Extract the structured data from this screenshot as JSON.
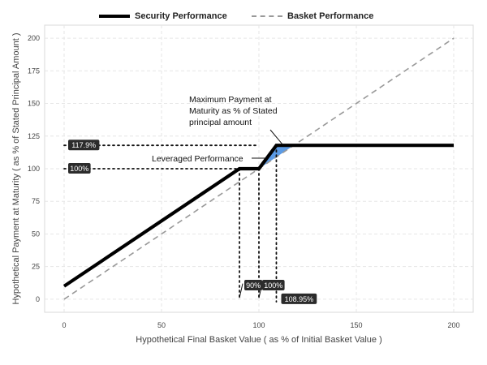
{
  "legend": {
    "security": "Security Performance",
    "basket": "Basket Performance"
  },
  "colors": {
    "security": "#000000",
    "basket": "#999999",
    "fill": "#4a90e2",
    "label_bg": "#2b2b2b",
    "grid": "#e6e6e6"
  },
  "chart_data": {
    "type": "line",
    "xlabel": "Hypothetical Final Basket Value ( as % of Initial Basket Value )",
    "ylabel": "Hypothetical Payment at Maturity ( as % of Stated Principal Amount )",
    "xlim": [
      -10,
      210
    ],
    "ylim": [
      -10,
      210
    ],
    "xticks": [
      0,
      50,
      100,
      150,
      200
    ],
    "yticks": [
      0,
      25,
      50,
      75,
      100,
      125,
      150,
      175,
      200
    ],
    "grid": true,
    "legend_position": "top-center",
    "series": [
      {
        "name": "Security Performance",
        "style": "solid",
        "x": [
          0,
          90,
          100,
          108.95,
          200
        ],
        "y": [
          10,
          100,
          100,
          117.9,
          117.9
        ]
      },
      {
        "name": "Basket Performance",
        "style": "dashed",
        "x": [
          0,
          200
        ],
        "y": [
          0,
          200
        ]
      }
    ],
    "shaded_region": {
      "x": [
        100,
        108.95,
        117.9
      ],
      "y": [
        100,
        117.9,
        117.9
      ]
    },
    "reference_lines": {
      "horizontal": [
        {
          "y": 117.9,
          "label": "117.9%"
        },
        {
          "y": 100,
          "label": "100%"
        }
      ],
      "vertical": [
        {
          "x": 90,
          "label": "90%"
        },
        {
          "x": 100,
          "label": "100%"
        },
        {
          "x": 108.95,
          "label": "108.95%"
        }
      ]
    },
    "annotations": [
      {
        "lines": [
          "Maximum Payment at",
          "Maturity as % of Stated",
          "principal amount"
        ],
        "target": [
          113,
          117.9
        ]
      },
      {
        "lines": [
          "Leveraged Performance"
        ],
        "target": [
          104,
          109
        ]
      }
    ]
  }
}
